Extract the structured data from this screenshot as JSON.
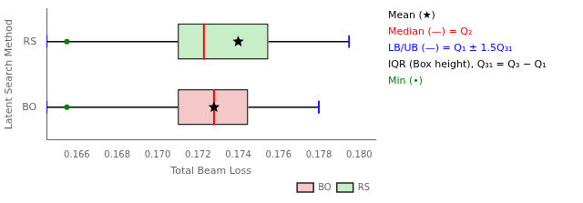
{
  "chart_data": {
    "type": "boxplot",
    "orientation": "horizontal",
    "categories": [
      "RS",
      "BO"
    ],
    "series": [
      {
        "name": "BO",
        "color": "#f5c8c8",
        "q1": 0.171,
        "median": 0.1728,
        "q3": 0.1745,
        "mean": 0.1728,
        "whisker_low": 0.1645,
        "whisker_high": 0.178,
        "min": 0.1655
      },
      {
        "name": "RS",
        "color": "#c8eec8",
        "q1": 0.171,
        "median": 0.1723,
        "q3": 0.1755,
        "mean": 0.174,
        "whisker_low": 0.1645,
        "whisker_high": 0.1795,
        "min": 0.1655
      }
    ],
    "edge_color": "#222222",
    "median_color": "red",
    "whisker_color": "black",
    "cap_color": "blue",
    "min_color": "green",
    "mean_color": "black",
    "xlabel": "Total Beam Loss",
    "ylabel": "Latent Search Method",
    "xlim": [
      0.1645,
      0.1808
    ],
    "xticks": [
      0.166,
      0.168,
      {
        "value": 0.17,
        "label": "0.170"
      },
      0.172,
      0.174,
      0.176,
      0.178,
      {
        "value": 0.18,
        "label": "0.180"
      }
    ],
    "grid": false,
    "legend": "lower right",
    "annotations": [
      {
        "text": "Mean (★)",
        "color": "black"
      },
      {
        "text": "Median (—) = Q₂",
        "color": "red"
      },
      {
        "text": "LB/UB (—) = Q₁ ± 1.5Q₃₁",
        "color": "blue"
      },
      {
        "text": "IQR (Box height), Q₃₁ = Q₃ − Q₁",
        "color": "black"
      },
      {
        "text": "Min (•)",
        "color": "green"
      }
    ]
  }
}
